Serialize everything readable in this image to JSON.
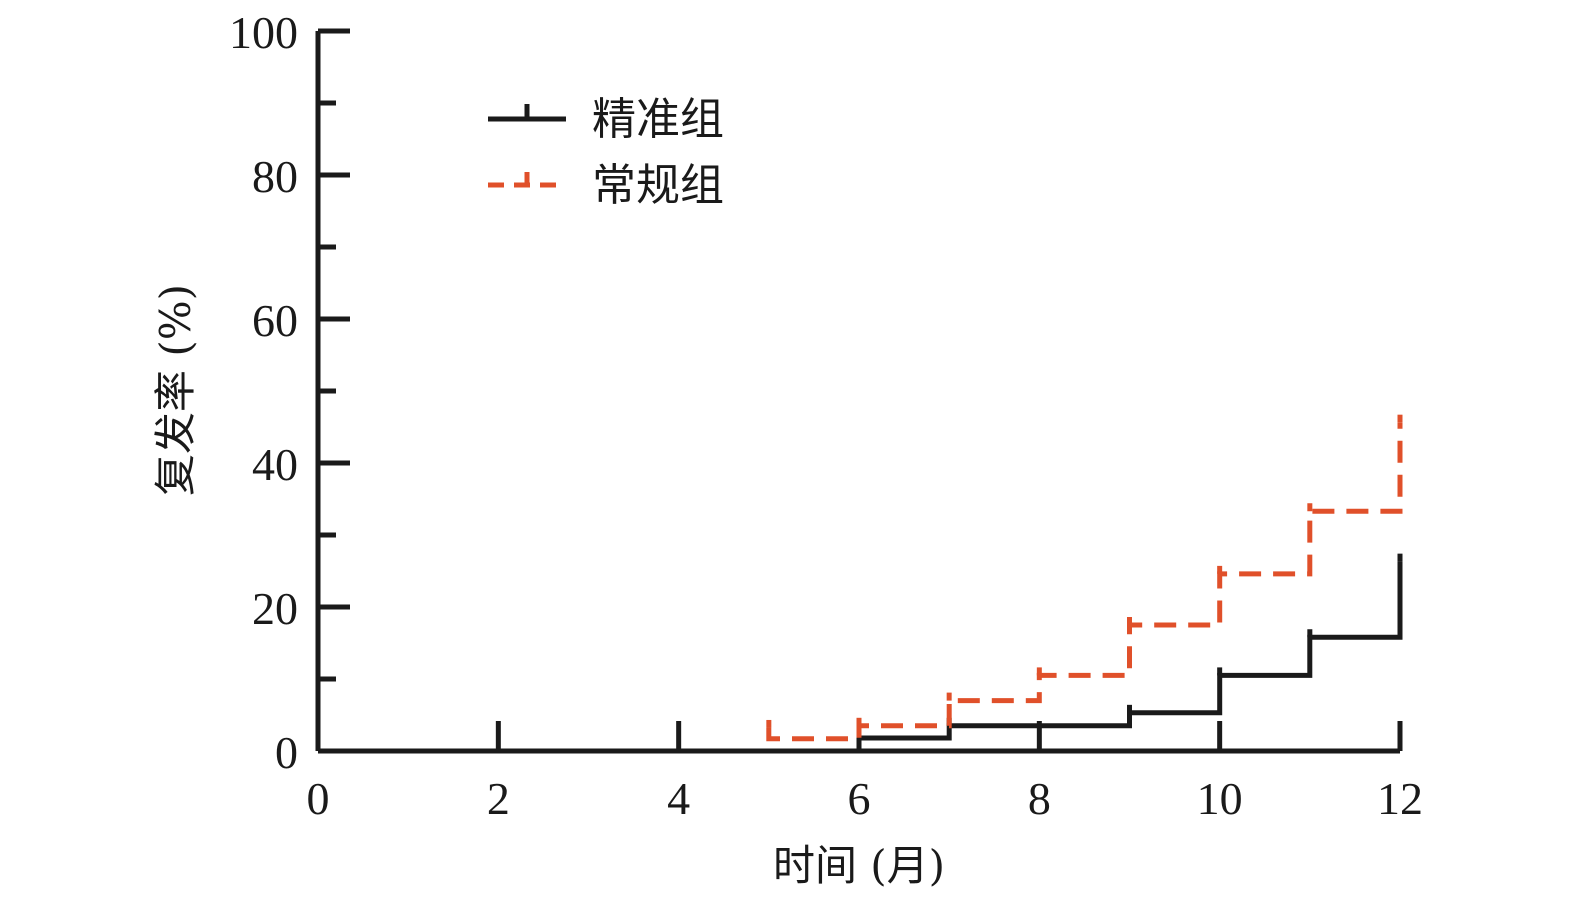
{
  "chart_data": {
    "type": "line",
    "subtype": "step (cumulative incidence)",
    "xlabel": "时间 (月)",
    "ylabel": "复发率 (%)",
    "xlim": [
      0,
      12
    ],
    "ylim": [
      0,
      100
    ],
    "x_ticks": [
      0,
      2,
      4,
      6,
      8,
      10,
      12
    ],
    "y_ticks": [
      0,
      20,
      40,
      60,
      80,
      100
    ],
    "x_tick_labels": [
      "0",
      "2",
      "4",
      "6",
      "8",
      "10",
      "12"
    ],
    "y_tick_labels": [
      "0",
      "20",
      "40",
      "60",
      "80",
      "100"
    ],
    "grid": false,
    "legend_position": "top-left",
    "series": [
      {
        "name": "精准组",
        "color": "#1a1a1a",
        "line_style": "solid",
        "x": [
          0,
          6,
          6,
          7,
          7,
          9,
          9,
          10,
          10,
          11,
          11,
          12,
          12
        ],
        "y": [
          0,
          0,
          1.8,
          1.8,
          3.5,
          3.5,
          5.3,
          5.3,
          10.5,
          10.5,
          15.8,
          15.8,
          26.3
        ]
      },
      {
        "name": "常规组",
        "color": "#e0502a",
        "line_style": "dashed",
        "x": [
          5,
          5,
          6,
          6,
          7,
          7,
          8,
          8,
          9,
          9,
          10,
          10,
          11,
          11,
          12,
          12
        ],
        "y": [
          3.2,
          1.7,
          1.7,
          3.5,
          3.5,
          7.0,
          7.0,
          10.5,
          10.5,
          17.5,
          17.5,
          24.6,
          24.6,
          33.3,
          33.3,
          45.6
        ]
      }
    ]
  }
}
